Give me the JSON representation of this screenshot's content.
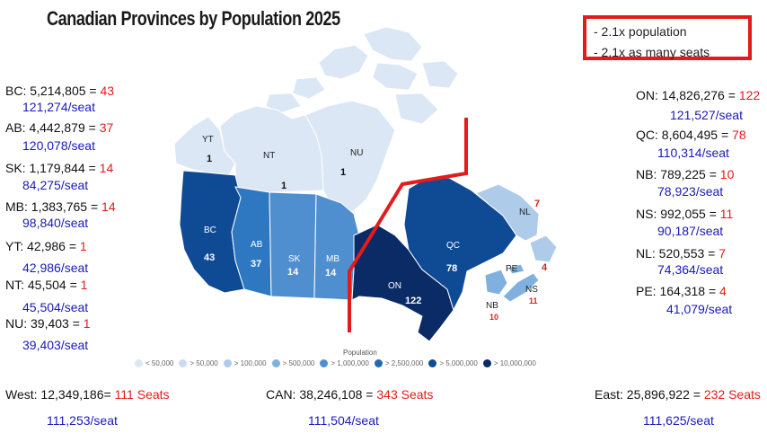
{
  "title": "Canadian Provinces by Population 2025",
  "note": [
    "- 2.1x population",
    "- 2.1x as many seats"
  ],
  "west_stats": [
    {
      "label": "BC: 5,214,805 = ",
      "seats": "43",
      "per": "121,274/seat"
    },
    {
      "label": "AB: 4,442,879 = ",
      "seats": "37",
      "per": "120,078/seat"
    },
    {
      "label": "SK: 1,179,844 = ",
      "seats": "14",
      "per": "84,275/seat"
    },
    {
      "label": "MB: 1,383,765 = ",
      "seats": "14",
      "per": "98,840/seat"
    },
    {
      "label": "YT: 42,986 = ",
      "seats": "1",
      "per": "42,986/seat"
    },
    {
      "label": "NT: 45,504 = ",
      "seats": "1",
      "per": "45,504/seat"
    },
    {
      "label": "NU: 39,403 = ",
      "seats": "1",
      "per": "39,403/seat"
    }
  ],
  "east_stats": [
    {
      "label": "ON: 14,826,276 = ",
      "seats": "122",
      "per": "121,527/seat"
    },
    {
      "label": "QC: 8,604,495 = ",
      "seats": "78",
      "per": "110,314/seat"
    },
    {
      "label": "NB: 789,225 = ",
      "seats": "10",
      "per": "78,923/seat"
    },
    {
      "label": "NS: 992,055 = ",
      "seats": "11",
      "per": "90,187/seat"
    },
    {
      "label": "NL: 520,553 = ",
      "seats": "7",
      "per": "74,364/seat"
    },
    {
      "label": "PE: 164,318 = ",
      "seats": "4",
      "per": "41,079/seat"
    }
  ],
  "totals": {
    "west": {
      "label": "West: 12,349,186= ",
      "seats": "111 Seats",
      "per": "111,253/seat"
    },
    "can": {
      "label": "CAN: 38,246,108 = ",
      "seats": "343 Seats",
      "per": "111,504/seat"
    },
    "east": {
      "label": "East: 25,896,922 = ",
      "seats": "232 Seats",
      "per": "111,625/seat"
    }
  },
  "map_labels": {
    "YT": "YT",
    "NT": "NT",
    "NU": "NU",
    "BC": "BC",
    "AB": "AB",
    "SK": "SK",
    "MB": "MB",
    "ON": "ON",
    "QC": "QC",
    "NL": "NL",
    "PE": "PE",
    "NS": "NS",
    "NB": "NB"
  },
  "map_seats": {
    "YT": "1",
    "NT": "1",
    "NU": "1",
    "BC": "43",
    "AB": "37",
    "SK": "14",
    "MB": "14",
    "ON": "122",
    "QC": "78",
    "NL": "7",
    "PE": "4",
    "NS": "11",
    "NB": "10"
  },
  "legend": {
    "title": "Population",
    "items": [
      {
        "label": "< 50,000",
        "color": "#dce7f5"
      },
      {
        "label": "> 50,000",
        "color": "#c9dcf1"
      },
      {
        "label": "> 100,000",
        "color": "#aecbea"
      },
      {
        "label": "> 500,000",
        "color": "#7fb0de"
      },
      {
        "label": "> 1,000,000",
        "color": "#4f8fcf"
      },
      {
        "label": "> 2,500,000",
        "color": "#2469b3"
      },
      {
        "label": "> 5,000,000",
        "color": "#0f4a94"
      },
      {
        "label": "> 10,000,000",
        "color": "#0a2b66"
      }
    ]
  },
  "colors": {
    "accent_red": "#e31b1b",
    "per_seat_blue": "#1a1ab8"
  }
}
